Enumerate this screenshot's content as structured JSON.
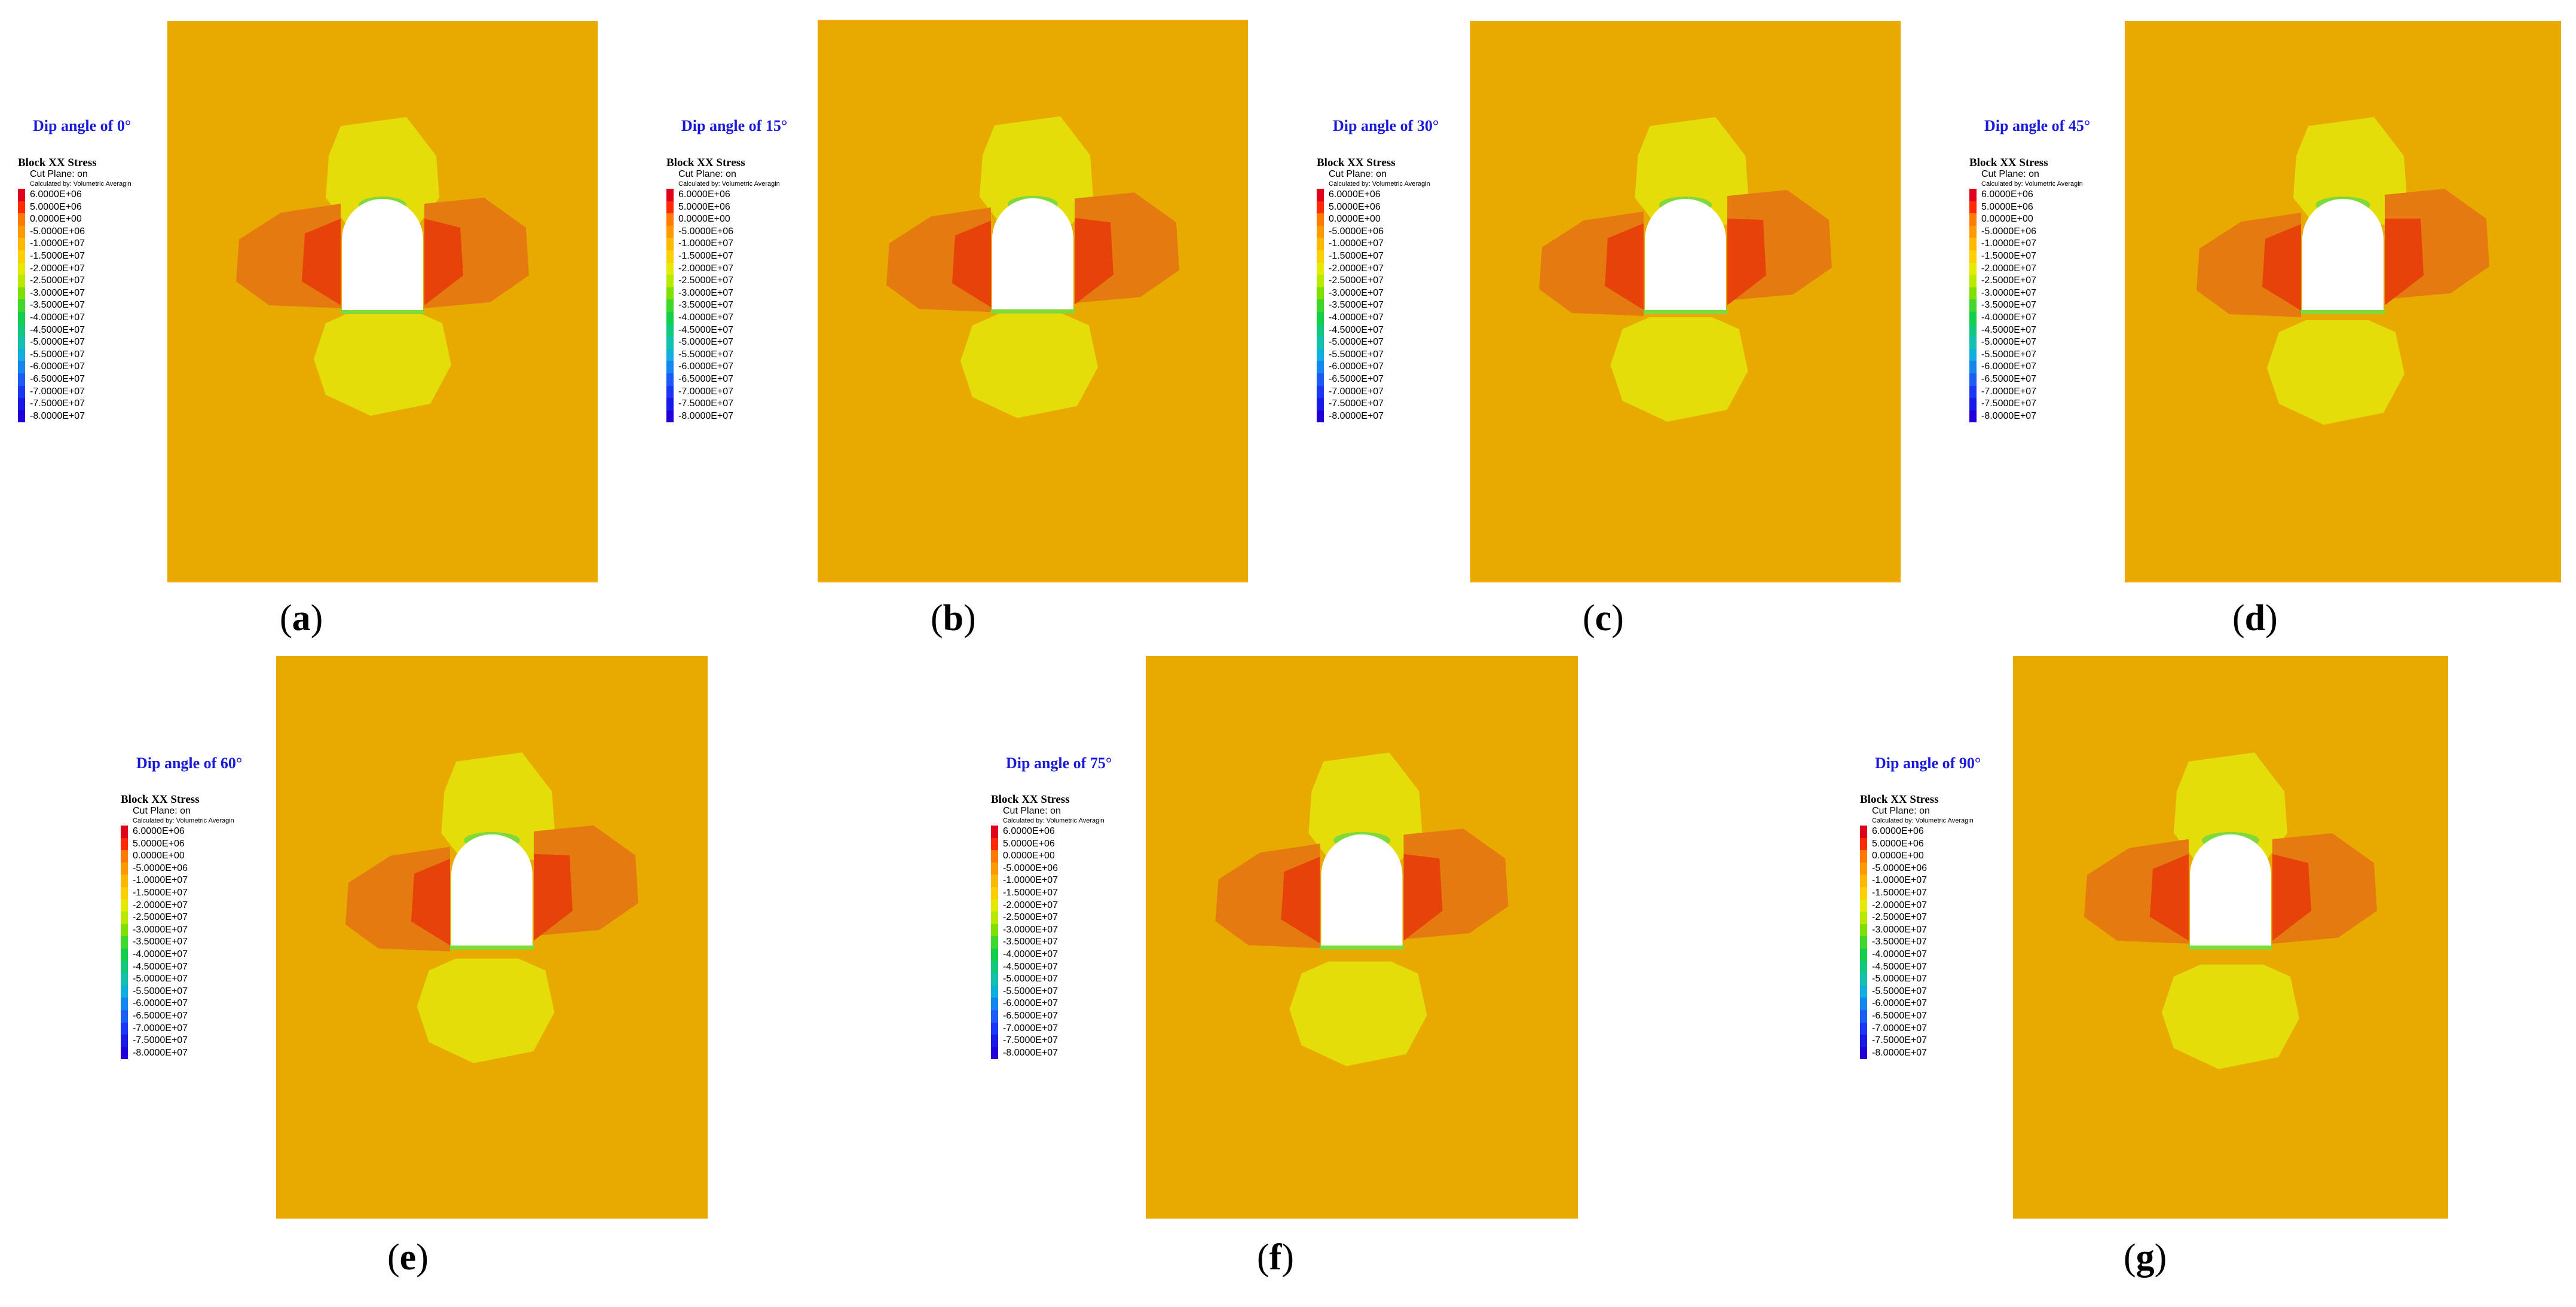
{
  "colors": {
    "background_orange": "#e8aa00",
    "yellow_zone": "#e5dd0a",
    "orange_zone": "#e57b10",
    "red_zone": "#e6420a",
    "green_zone": "#7fd93b",
    "excavation": "#ffffff"
  },
  "legend": {
    "title": "Block XX Stress",
    "subtitle": "Cut Plane: on",
    "calc": "Calculated by: Volumetric Averagin",
    "values": [
      "6.0000E+06",
      "5.0000E+06",
      "0.0000E+00",
      "-5.0000E+06",
      "-1.0000E+07",
      "-1.5000E+07",
      "-2.0000E+07",
      "-2.5000E+07",
      "-3.0000E+07",
      "-3.5000E+07",
      "-4.0000E+07",
      "-4.5000E+07",
      "-5.0000E+07",
      "-5.5000E+07",
      "-6.0000E+07",
      "-6.5000E+07",
      "-7.0000E+07",
      "-7.5000E+07",
      "-8.0000E+07"
    ],
    "colors": [
      "#e1001a",
      "#ff2a00",
      "#ff7a00",
      "#ff9900",
      "#ffb700",
      "#ffd000",
      "#e4ea00",
      "#b8ea00",
      "#7fe000",
      "#3fd82a",
      "#13cf4a",
      "#10c97c",
      "#14c0b0",
      "#13aee0",
      "#1486f0",
      "#1a5cf4",
      "#1b36f4",
      "#1a1ae8",
      "#2000d8"
    ]
  },
  "panels": [
    {
      "title": "Dip angle of 0°",
      "label": "a",
      "dip": 0
    },
    {
      "title": "Dip angle of 15°",
      "label": "b",
      "dip": 15
    },
    {
      "title": "Dip angle of 30°",
      "label": "c",
      "dip": 30
    },
    {
      "title": "Dip angle of 45°",
      "label": "d",
      "dip": 45
    },
    {
      "title": "Dip angle of 60°",
      "label": "e",
      "dip": 60
    },
    {
      "title": "Dip angle of 75°",
      "label": "f",
      "dip": 75
    },
    {
      "title": "Dip angle of 90°",
      "label": "g",
      "dip": 90
    }
  ]
}
